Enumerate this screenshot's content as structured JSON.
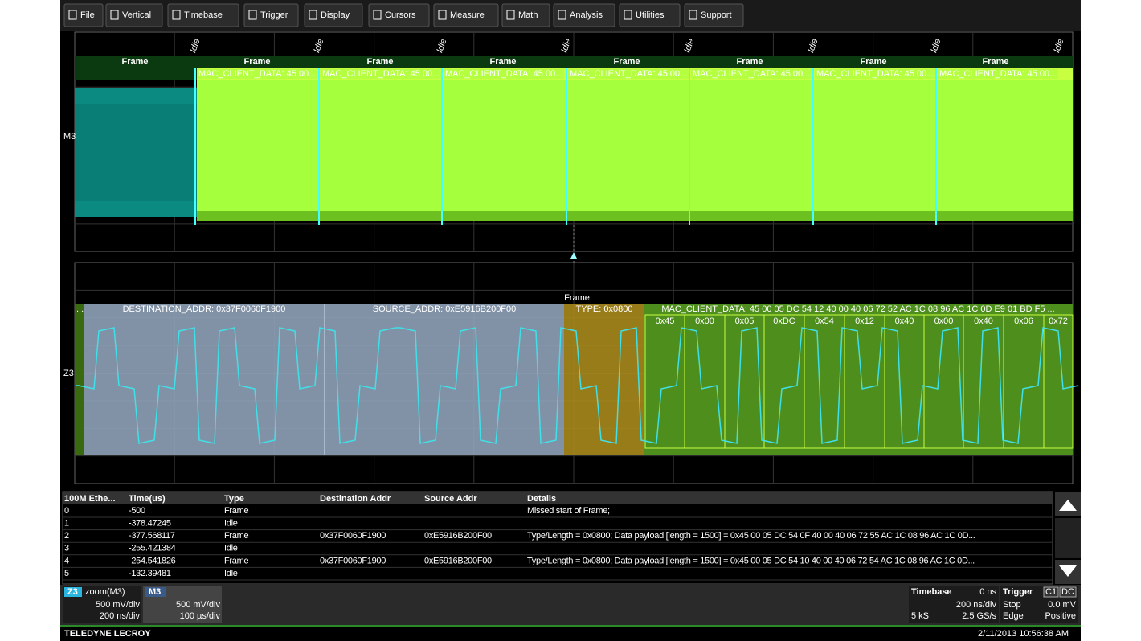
{
  "menu": [
    "File",
    "Vertical",
    "Timebase",
    "Trigger",
    "Display",
    "Cursors",
    "Measure",
    "Math",
    "Analysis",
    "Utilities",
    "Support"
  ],
  "upper_trace": {
    "label": "M3",
    "idle_labels": [
      "Idle",
      "Idle",
      "Idle",
      "Idle",
      "Idle",
      "Idle",
      "Idle",
      "Idle"
    ],
    "frame_labels": [
      "Frame",
      "Frame",
      "Frame",
      "Frame",
      "Frame",
      "Frame",
      "Frame",
      "Frame"
    ],
    "data_labels": [
      "MAC_CLIENT_DATA: 45 00...",
      "MAC_CLIENT_DATA: 45 00...",
      "MAC_CLIENT_DATA: 45 00...",
      "MAC_CLIENT_DATA: 45 00...",
      "MAC_CLIENT_DATA: 45 00...",
      "MAC_CLIENT_DATA: 45 00...",
      "MAC_CLIENT_DATA: 45 00..."
    ]
  },
  "lower_trace": {
    "label": "Z3",
    "frame_label": "Frame",
    "lead_label": "...",
    "fields": [
      "DESTINATION_ADDR: 0x37F0060F1900",
      "SOURCE_ADDR: 0xE5916B200F00",
      "TYPE: 0x0800",
      "MAC_CLIENT_DATA: 45 00 05 DC 54 12 40 00 40 06 72 52 AC 1C 08 96 AC 1C 0D E9 01 BD F5 ..."
    ],
    "bytes": [
      "0x45",
      "0x00",
      "0x05",
      "0xDC",
      "0x54",
      "0x12",
      "0x40",
      "0x00",
      "0x40",
      "0x06",
      "0x72"
    ]
  },
  "table": {
    "headers": [
      "100M Ethe...",
      "Time(us)",
      "Type",
      "Destination Addr",
      "Source Addr",
      "Details"
    ],
    "rows": [
      [
        "0",
        "-500",
        "Frame",
        "",
        "",
        "Missed start of Frame;"
      ],
      [
        "1",
        "-378.47245",
        "Idle",
        "",
        "",
        ""
      ],
      [
        "2",
        "-377.568117",
        "Frame",
        "0x37F0060F1900",
        "0xE5916B200F00",
        "Type/Length = 0x0800; Data payload [length = 1500] = 0x45 00 05 DC 54 0F 40 00 40 06 72 55 AC 1C 08 96 AC 1C 0D..."
      ],
      [
        "3",
        "-255.421384",
        "Idle",
        "",
        "",
        ""
      ],
      [
        "4",
        "-254.541826",
        "Frame",
        "0x37F0060F1900",
        "0xE5916B200F00",
        "Type/Length = 0x0800; Data payload [length = 1500] = 0x45 00 05 DC 54 10 40 00 40 06 72 54 AC 1C 08 96 AC 1C 0D..."
      ],
      [
        "5",
        "-132.39481",
        "Idle",
        "",
        "",
        ""
      ]
    ]
  },
  "status": {
    "zoom": {
      "badge": "Z3",
      "name": "zoom(M3)",
      "vdiv": "500 mV/div",
      "tdiv": "200 ns/div"
    },
    "memory": {
      "badge": "M3",
      "vdiv": "500 mV/div",
      "tdiv": "100 µs/div"
    },
    "timebase": {
      "title": "Timebase",
      "delay": "0 ns",
      "tdiv": "200 ns/div",
      "samples": "5 kS",
      "rate": "2.5 GS/s"
    },
    "trigger": {
      "title": "Trigger",
      "source": "C1",
      "coupling": "DC",
      "mode": "Stop",
      "level": "0.0 mV",
      "type": "Edge",
      "slope": "Positive"
    }
  },
  "footer": {
    "brand": "TELEDYNE LECROY",
    "datetime": "2/11/2013 10:56:38 AM"
  }
}
